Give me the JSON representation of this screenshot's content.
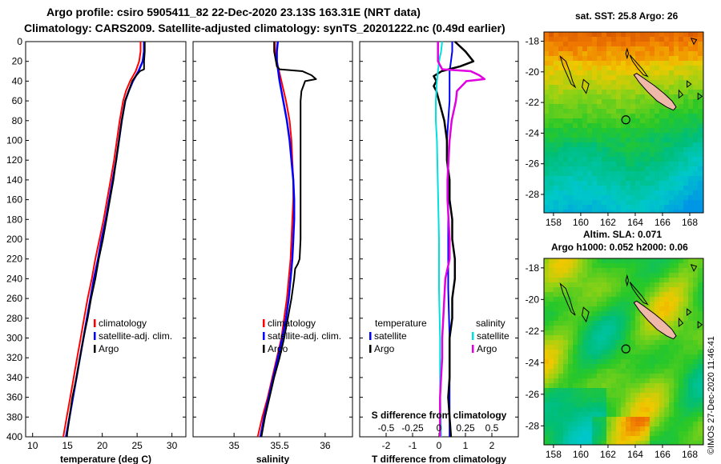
{
  "title_line1": "Argo profile: csiro 5905411_82 22-Dec-2020 23.13S 163.31E (NRT data)",
  "title_line2": "Climatology: CARS2009. Satellite-adjusted climatology: synTS_20201222.nc (0.49d earlier)",
  "map_sst_title": "sat. SST: 25.8 Argo: 26",
  "map_sla_title1": "Altim. SLA: 0.071",
  "map_sla_title2": "Argo h1000: 0.052 h2000: 0.06",
  "credit": "©IMOS 27-Dec-2020 11:46:41",
  "colors": {
    "climatology": "#ff0000",
    "satellite": "#0000ff",
    "argo": "#000000",
    "sat_s_diff": "#00e0e0",
    "argo_s_diff": "#e000e0"
  },
  "chart_data": [
    {
      "type": "line",
      "name": "temperature",
      "xlabel": "temperature (deg C)",
      "ylabel": "",
      "xlim": [
        9,
        32
      ],
      "ylim": [
        400,
        0
      ],
      "xticks": [
        "10",
        "15",
        "20",
        "25",
        "30"
      ],
      "xtick_values": [
        10,
        15,
        20,
        25,
        30
      ],
      "yticks": [
        "0",
        "20",
        "40",
        "60",
        "80",
        "100",
        "120",
        "140",
        "160",
        "180",
        "200",
        "220",
        "240",
        "260",
        "280",
        "300",
        "320",
        "340",
        "360",
        "380",
        "400"
      ],
      "legend": [
        "climatology",
        "satellite-adj. clim.",
        "Argo"
      ],
      "series": [
        {
          "name": "climatology",
          "depth": [
            0,
            10,
            20,
            30,
            40,
            50,
            60,
            80,
            100,
            120,
            140,
            160,
            180,
            200,
            220,
            240,
            260,
            280,
            300,
            320,
            340,
            360,
            380,
            400
          ],
          "values": [
            25.5,
            25.5,
            25.3,
            24.8,
            24.0,
            23.4,
            23.0,
            22.5,
            22.1,
            21.7,
            21.2,
            20.7,
            20.2,
            19.6,
            19.0,
            18.5,
            17.9,
            17.4,
            16.9,
            16.4,
            15.9,
            15.4,
            14.9,
            14.4
          ]
        },
        {
          "name": "satellite-adj. clim.",
          "depth": [
            0,
            10,
            20,
            30,
            40,
            50,
            60,
            80,
            100,
            120,
            140,
            160,
            180,
            200,
            220,
            240,
            260,
            280,
            300,
            320,
            340,
            360,
            380,
            400
          ],
          "values": [
            26.0,
            26.0,
            25.8,
            25.2,
            24.4,
            23.8,
            23.3,
            22.8,
            22.4,
            22.0,
            21.5,
            21.0,
            20.5,
            19.9,
            19.4,
            18.8,
            18.3,
            17.8,
            17.3,
            16.8,
            16.3,
            15.8,
            15.3,
            14.8
          ]
        },
        {
          "name": "Argo",
          "depth": [
            0,
            10,
            20,
            28,
            30,
            35,
            40,
            50,
            60,
            80,
            100,
            120,
            140,
            160,
            180,
            200,
            220,
            240,
            260,
            280,
            300,
            320,
            340,
            360,
            380,
            400
          ],
          "values": [
            26.1,
            26.1,
            26.0,
            26.0,
            25.4,
            24.8,
            24.3,
            23.8,
            23.3,
            22.8,
            22.4,
            22.0,
            21.6,
            21.1,
            20.6,
            20.1,
            19.5,
            19.0,
            18.4,
            17.9,
            17.3,
            16.8,
            16.3,
            15.7,
            15.3,
            14.9
          ]
        }
      ]
    },
    {
      "type": "line",
      "name": "salinity",
      "xlabel": "salinity",
      "ylabel": "",
      "xlim": [
        34.55,
        36.3
      ],
      "ylim": [
        400,
        0
      ],
      "xticks": [
        "35",
        "35.5",
        "36"
      ],
      "xtick_values": [
        35,
        35.5,
        36
      ],
      "legend": [
        "climatology",
        "satellite-adj. clim.",
        "Argo"
      ],
      "series": [
        {
          "name": "climatology",
          "depth": [
            0,
            10,
            20,
            40,
            60,
            80,
            100,
            120,
            140,
            160,
            180,
            200,
            220,
            240,
            260,
            280,
            300,
            320,
            340,
            360,
            380,
            400
          ],
          "values": [
            35.45,
            35.45,
            35.47,
            35.52,
            35.57,
            35.61,
            35.63,
            35.64,
            35.65,
            35.65,
            35.64,
            35.63,
            35.62,
            35.6,
            35.58,
            35.55,
            35.52,
            35.47,
            35.42,
            35.37,
            35.31,
            35.26
          ]
        },
        {
          "name": "satellite-adj. clim.",
          "depth": [
            0,
            10,
            20,
            40,
            60,
            80,
            100,
            120,
            140,
            160,
            180,
            200,
            220,
            240,
            260,
            280,
            300,
            320,
            340,
            360,
            380,
            400
          ],
          "values": [
            35.48,
            35.47,
            35.47,
            35.5,
            35.54,
            35.58,
            35.61,
            35.63,
            35.65,
            35.66,
            35.66,
            35.65,
            35.64,
            35.62,
            35.6,
            35.57,
            35.53,
            35.48,
            35.43,
            35.38,
            35.33,
            35.29
          ]
        },
        {
          "name": "Argo",
          "depth": [
            0,
            10,
            20,
            25,
            28,
            30,
            34,
            38,
            40,
            50,
            60,
            80,
            100,
            120,
            140,
            160,
            180,
            200,
            220,
            225,
            230,
            240,
            260,
            280,
            300,
            320,
            340,
            360,
            380,
            400
          ],
          "values": [
            35.44,
            35.44,
            35.46,
            35.47,
            35.5,
            35.75,
            35.85,
            35.9,
            35.78,
            35.74,
            35.73,
            35.73,
            35.73,
            35.73,
            35.73,
            35.73,
            35.73,
            35.73,
            35.72,
            35.7,
            35.67,
            35.66,
            35.63,
            35.59,
            35.55,
            35.5,
            35.44,
            35.39,
            35.34,
            35.3
          ]
        }
      ]
    },
    {
      "type": "line",
      "name": "difference",
      "xlabel": "T difference from climatology",
      "xlabel2": "S difference from climatology",
      "xlim": [
        -3,
        3
      ],
      "ylim": [
        400,
        0
      ],
      "xticks": [
        "-2",
        "-1",
        "0",
        "1",
        "2"
      ],
      "xtick_values": [
        -2,
        -1,
        0,
        1,
        2
      ],
      "xticks2": [
        "-0.5",
        "-0.25",
        "0",
        "0.25",
        "0.5"
      ],
      "legend_temperature_title": "temperature",
      "legend_salinity_title": "salinity",
      "legend": [
        "satellite",
        "Argo",
        "satellite",
        "Argo"
      ],
      "series": [
        {
          "name": "T satellite",
          "depth": [
            0,
            10,
            20,
            30,
            40,
            60,
            80,
            100,
            150,
            200,
            250,
            300,
            350,
            400
          ],
          "values": [
            0.5,
            0.5,
            0.45,
            0.4,
            0.4,
            0.4,
            0.35,
            0.3,
            0.35,
            0.35,
            0.35,
            0.4,
            0.4,
            0.4
          ]
        },
        {
          "name": "T Argo",
          "depth": [
            0,
            10,
            20,
            25,
            30,
            35,
            40,
            45,
            50,
            60,
            80,
            100,
            120,
            140,
            160,
            180,
            200,
            220,
            240,
            260,
            280,
            300,
            320,
            340,
            360,
            380,
            400
          ],
          "values": [
            0.6,
            1.0,
            1.3,
            0.8,
            0.1,
            -0.2,
            -0.1,
            -0.2,
            -0.1,
            0.0,
            0.2,
            0.3,
            0.3,
            0.4,
            0.4,
            0.5,
            0.5,
            0.6,
            0.6,
            0.5,
            0.5,
            0.4,
            0.4,
            0.4,
            0.35,
            0.4,
            0.45
          ]
        },
        {
          "name": "S satellite",
          "depth": [
            0,
            10,
            20,
            40,
            60,
            80,
            100,
            150,
            200,
            250,
            300,
            350,
            400
          ],
          "values": [
            0.03,
            0.02,
            0.0,
            -0.02,
            -0.03,
            -0.03,
            -0.02,
            -0.01,
            0.0,
            0.0,
            0.01,
            0.01,
            0.02
          ]
        },
        {
          "name": "S Argo",
          "depth": [
            0,
            10,
            20,
            28,
            30,
            34,
            38,
            40,
            50,
            60,
            80,
            100,
            120,
            140,
            160,
            180,
            200,
            220,
            240,
            260,
            280,
            300,
            320,
            340,
            360,
            380,
            400
          ],
          "values": [
            -0.01,
            -0.01,
            -0.01,
            0.03,
            0.3,
            0.38,
            0.43,
            0.26,
            0.17,
            0.16,
            0.12,
            0.1,
            0.09,
            0.08,
            0.08,
            0.09,
            0.1,
            0.1,
            0.06,
            0.05,
            0.04,
            0.03,
            0.03,
            0.02,
            0.01,
            0.01,
            0.01
          ]
        }
      ]
    },
    {
      "type": "heatmap",
      "name": "sst-map",
      "title": "sat. SST: 25.8 Argo: 26",
      "xticks": [
        "158",
        "160",
        "162",
        "164",
        "166",
        "168"
      ],
      "xtick_values": [
        158,
        160,
        162,
        164,
        166,
        168
      ],
      "yticks": [
        "-18",
        "-20",
        "-22",
        "-24",
        "-26",
        "-28"
      ],
      "ytick_values": [
        -18,
        -20,
        -22,
        -24,
        -26,
        -28
      ],
      "xlim": [
        157.3,
        169.0
      ],
      "ylim": [
        -29.2,
        -17.4
      ],
      "argo_position": [
        163.31,
        -23.13
      ]
    },
    {
      "type": "heatmap",
      "name": "sla-map",
      "title": "Altim. SLA: 0.071",
      "xticks": [
        "158",
        "160",
        "162",
        "164",
        "166",
        "168"
      ],
      "xtick_values": [
        158,
        160,
        162,
        164,
        166,
        168
      ],
      "yticks": [
        "-18",
        "-20",
        "-22",
        "-24",
        "-26",
        "-28"
      ],
      "ytick_values": [
        -18,
        -20,
        -22,
        -24,
        -26,
        -28
      ],
      "xlim": [
        157.3,
        169.0
      ],
      "ylim": [
        -29.2,
        -17.4
      ],
      "argo_position": [
        163.31,
        -23.13
      ]
    }
  ]
}
